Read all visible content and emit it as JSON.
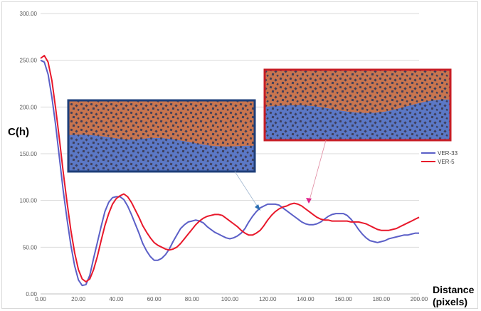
{
  "chart_data": {
    "type": "line",
    "title": "",
    "ylabel": "C(h)",
    "xlabel": "Distance (pixels)",
    "xlabel_lines": [
      "Distance",
      "(pixels)"
    ],
    "xlim": [
      0,
      200
    ],
    "ylim": [
      0,
      300
    ],
    "xticks": [
      0,
      20,
      40,
      60,
      80,
      100,
      120,
      140,
      160,
      180,
      200
    ],
    "yticks": [
      0,
      50,
      100,
      150,
      200,
      250,
      300
    ],
    "xtick_labels": [
      "0.00",
      "20.00",
      "40.00",
      "60.00",
      "80.00",
      "100.00",
      "120.00",
      "140.00",
      "160.00",
      "180.00",
      "200.00"
    ],
    "ytick_labels": [
      "0.00",
      "50.00",
      "100.00",
      "150.00",
      "200.00",
      "250.00",
      "300.00"
    ],
    "grid": "horizontal",
    "legend_position": "right",
    "series": [
      {
        "name": "VER-33",
        "color": "#5b5fc7",
        "points": [
          [
            0,
            250
          ],
          [
            2,
            248
          ],
          [
            4,
            235
          ],
          [
            6,
            210
          ],
          [
            8,
            180
          ],
          [
            10,
            145
          ],
          [
            12,
            110
          ],
          [
            14,
            80
          ],
          [
            16,
            52
          ],
          [
            18,
            30
          ],
          [
            20,
            15
          ],
          [
            22,
            9
          ],
          [
            24,
            10
          ],
          [
            26,
            20
          ],
          [
            28,
            38
          ],
          [
            30,
            55
          ],
          [
            32,
            72
          ],
          [
            34,
            88
          ],
          [
            36,
            98
          ],
          [
            38,
            103
          ],
          [
            40,
            104
          ],
          [
            42,
            104
          ],
          [
            44,
            101
          ],
          [
            46,
            94
          ],
          [
            48,
            85
          ],
          [
            50,
            75
          ],
          [
            52,
            65
          ],
          [
            54,
            54
          ],
          [
            56,
            46
          ],
          [
            58,
            40
          ],
          [
            60,
            36
          ],
          [
            62,
            36
          ],
          [
            64,
            38
          ],
          [
            66,
            42
          ],
          [
            68,
            48
          ],
          [
            70,
            56
          ],
          [
            72,
            63
          ],
          [
            74,
            70
          ],
          [
            76,
            74
          ],
          [
            78,
            77
          ],
          [
            80,
            78
          ],
          [
            82,
            79
          ],
          [
            84,
            78
          ],
          [
            86,
            76
          ],
          [
            88,
            72
          ],
          [
            90,
            69
          ],
          [
            92,
            66
          ],
          [
            94,
            64
          ],
          [
            96,
            62
          ],
          [
            98,
            60
          ],
          [
            100,
            59
          ],
          [
            102,
            60
          ],
          [
            104,
            62
          ],
          [
            106,
            65
          ],
          [
            108,
            70
          ],
          [
            110,
            77
          ],
          [
            112,
            83
          ],
          [
            114,
            88
          ],
          [
            116,
            92
          ],
          [
            118,
            94
          ],
          [
            120,
            96
          ],
          [
            122,
            96
          ],
          [
            124,
            96
          ],
          [
            126,
            95
          ],
          [
            128,
            92
          ],
          [
            130,
            89
          ],
          [
            132,
            86
          ],
          [
            134,
            83
          ],
          [
            136,
            80
          ],
          [
            138,
            77
          ],
          [
            140,
            75
          ],
          [
            142,
            74
          ],
          [
            144,
            74
          ],
          [
            146,
            75
          ],
          [
            148,
            77
          ],
          [
            150,
            80
          ],
          [
            152,
            83
          ],
          [
            154,
            85
          ],
          [
            156,
            86
          ],
          [
            158,
            86
          ],
          [
            160,
            86
          ],
          [
            162,
            84
          ],
          [
            164,
            80
          ],
          [
            166,
            75
          ],
          [
            168,
            69
          ],
          [
            170,
            64
          ],
          [
            172,
            60
          ],
          [
            174,
            57
          ],
          [
            176,
            56
          ],
          [
            178,
            55
          ],
          [
            180,
            56
          ],
          [
            182,
            57
          ],
          [
            184,
            59
          ],
          [
            186,
            60
          ],
          [
            188,
            61
          ],
          [
            190,
            62
          ],
          [
            192,
            63
          ],
          [
            194,
            63
          ],
          [
            196,
            64
          ],
          [
            198,
            65
          ],
          [
            200,
            65
          ]
        ]
      },
      {
        "name": "VER-5",
        "color": "#e8182b",
        "points": [
          [
            0,
            252
          ],
          [
            2,
            255
          ],
          [
            4,
            248
          ],
          [
            6,
            228
          ],
          [
            8,
            198
          ],
          [
            10,
            165
          ],
          [
            12,
            130
          ],
          [
            14,
            98
          ],
          [
            16,
            68
          ],
          [
            18,
            44
          ],
          [
            20,
            26
          ],
          [
            22,
            16
          ],
          [
            24,
            13
          ],
          [
            26,
            16
          ],
          [
            28,
            26
          ],
          [
            30,
            40
          ],
          [
            32,
            57
          ],
          [
            34,
            73
          ],
          [
            36,
            86
          ],
          [
            38,
            96
          ],
          [
            40,
            102
          ],
          [
            42,
            105
          ],
          [
            44,
            107
          ],
          [
            46,
            104
          ],
          [
            48,
            98
          ],
          [
            50,
            90
          ],
          [
            52,
            82
          ],
          [
            54,
            73
          ],
          [
            56,
            66
          ],
          [
            58,
            60
          ],
          [
            60,
            55
          ],
          [
            62,
            52
          ],
          [
            64,
            50
          ],
          [
            66,
            48
          ],
          [
            68,
            47
          ],
          [
            70,
            48
          ],
          [
            72,
            50
          ],
          [
            74,
            54
          ],
          [
            76,
            59
          ],
          [
            78,
            64
          ],
          [
            80,
            69
          ],
          [
            82,
            74
          ],
          [
            84,
            78
          ],
          [
            86,
            81
          ],
          [
            88,
            83
          ],
          [
            90,
            84
          ],
          [
            92,
            85
          ],
          [
            94,
            85
          ],
          [
            96,
            84
          ],
          [
            98,
            81
          ],
          [
            100,
            78
          ],
          [
            102,
            75
          ],
          [
            104,
            72
          ],
          [
            106,
            68
          ],
          [
            108,
            65
          ],
          [
            110,
            63
          ],
          [
            112,
            63
          ],
          [
            114,
            65
          ],
          [
            116,
            68
          ],
          [
            118,
            73
          ],
          [
            120,
            79
          ],
          [
            122,
            84
          ],
          [
            124,
            88
          ],
          [
            126,
            91
          ],
          [
            128,
            93
          ],
          [
            130,
            94
          ],
          [
            132,
            96
          ],
          [
            134,
            97
          ],
          [
            136,
            96
          ],
          [
            138,
            94
          ],
          [
            140,
            91
          ],
          [
            142,
            88
          ],
          [
            144,
            85
          ],
          [
            146,
            82
          ],
          [
            148,
            80
          ],
          [
            150,
            79
          ],
          [
            152,
            79
          ],
          [
            154,
            78
          ],
          [
            156,
            78
          ],
          [
            158,
            78
          ],
          [
            160,
            78
          ],
          [
            162,
            78
          ],
          [
            164,
            77
          ],
          [
            166,
            77
          ],
          [
            168,
            77
          ],
          [
            170,
            76
          ],
          [
            172,
            75
          ],
          [
            174,
            73
          ],
          [
            176,
            71
          ],
          [
            178,
            69
          ],
          [
            180,
            68
          ],
          [
            182,
            68
          ],
          [
            184,
            68
          ],
          [
            186,
            69
          ],
          [
            188,
            70
          ],
          [
            190,
            72
          ],
          [
            192,
            74
          ],
          [
            194,
            76
          ],
          [
            196,
            78
          ],
          [
            198,
            80
          ],
          [
            200,
            82
          ]
        ]
      }
    ],
    "insets": [
      {
        "name": "VER-33 sample",
        "border_color": "#1f3f7a",
        "top_color": "#c9734e",
        "bottom_color": "#5b79c8"
      },
      {
        "name": "VER-5 sample",
        "border_color": "#c81e26",
        "top_color": "#c9734e",
        "bottom_color": "#5b79c8"
      }
    ]
  }
}
